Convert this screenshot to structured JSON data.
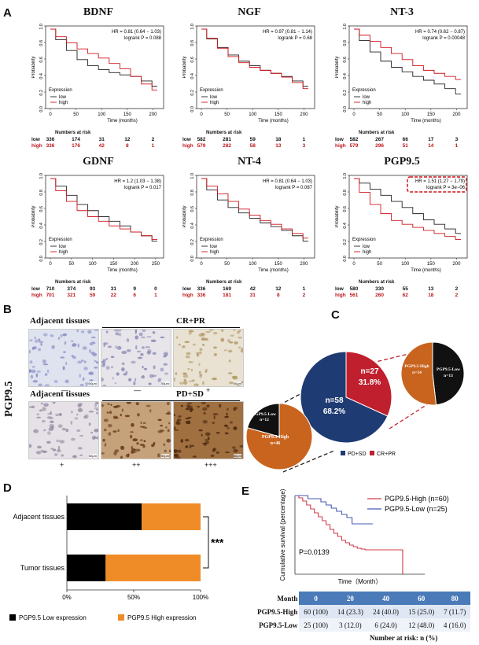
{
  "panels": {
    "a": "A",
    "b": "B",
    "c": "C",
    "d": "D",
    "e": "E"
  },
  "km": [
    {
      "title": "BDNF",
      "hr": "HR = 0.81 (0.64 − 1.03)",
      "logrank": "logrank P = 0.088",
      "xticks": [
        "0",
        "50",
        "100",
        "150",
        "200"
      ],
      "low_risk": [
        "336",
        "174",
        "31",
        "12",
        "2"
      ],
      "high_risk": [
        "336",
        "176",
        "42",
        "8",
        "1"
      ]
    },
    {
      "title": "NGF",
      "hr": "HR = 0.97 (0.81 − 1.14)",
      "logrank": "logrank P = 0.68",
      "xticks": [
        "0",
        "50",
        "100",
        "150",
        "200"
      ],
      "low_risk": [
        "582",
        "281",
        "59",
        "18",
        "1"
      ],
      "high_risk": [
        "579",
        "282",
        "58",
        "13",
        "3"
      ]
    },
    {
      "title": "NT-3",
      "hr": "HR = 0.74 (0.62 − 0.87)",
      "logrank": "logrank P = 0.00048",
      "xticks": [
        "0",
        "50",
        "100",
        "150",
        "200"
      ],
      "low_risk": [
        "582",
        "267",
        "66",
        "17",
        "3"
      ],
      "high_risk": [
        "579",
        "296",
        "51",
        "14",
        "1"
      ]
    },
    {
      "title": "GDNF",
      "hr": "HR = 1.2 (1.03 − 1.38)",
      "logrank": "logrank P = 0.017",
      "xticks": [
        "0",
        "50",
        "100",
        "150",
        "200",
        "250"
      ],
      "low_risk": [
        "710",
        "374",
        "93",
        "31",
        "9",
        "0"
      ],
      "high_risk": [
        "701",
        "321",
        "59",
        "22",
        "6",
        "1"
      ]
    },
    {
      "title": "NT-4",
      "hr": "HR = 0.81 (0.64 − 1.03)",
      "logrank": "logrank P = 0.087",
      "xticks": [
        "0",
        "50",
        "100",
        "150",
        "200"
      ],
      "low_risk": [
        "336",
        "169",
        "42",
        "12",
        "1"
      ],
      "high_risk": [
        "336",
        "181",
        "31",
        "8",
        "2"
      ]
    },
    {
      "title": "PGP9.5",
      "hr": "HR = 1.51 (1.27 − 1.79)",
      "logrank": "logrank P = 3e−06",
      "xticks": [
        "0",
        "50",
        "100",
        "150",
        "200"
      ],
      "low_risk": [
        "580",
        "330",
        "55",
        "13",
        "2"
      ],
      "high_risk": [
        "561",
        "260",
        "62",
        "18",
        "2"
      ]
    }
  ],
  "km_common": {
    "ylabel": "Probability",
    "xlabel": "Time (months)",
    "yticks": [
      "0.0",
      "0.2",
      "0.4",
      "0.6",
      "0.8",
      "1.0"
    ],
    "legend_title": "Expression",
    "legend_low": "low",
    "legend_high": "high",
    "risk_header": "Numbers at risk",
    "risk_low": "low",
    "risk_high": "high",
    "color_low": "#222222",
    "color_high": "#d0141c"
  },
  "panel_b": {
    "side_label": "PGP9.5",
    "top_left": "Adjacent tissues",
    "top_right": "CR+PR",
    "bottom_left": "Adjacent tissues",
    "bottom_right": "PD+SD",
    "scale": "50μm",
    "top_scores": [
      "—",
      "—",
      "+"
    ],
    "bottom_scores": [
      "+",
      "++",
      "+++"
    ]
  },
  "panel_c": {
    "main_left_label": "n=58",
    "main_left_pct": "68.2%",
    "main_right_label": "n=27",
    "main_right_pct": "31.8%",
    "left_high": "PGP9.5-High",
    "left_high_n": "n=46",
    "left_low": "PGP9.5-Low",
    "left_low_n": "n=12",
    "right_high": "PGP9.5-High",
    "right_high_n": "n=14",
    "right_low": "PGP9.5-Low",
    "right_low_n": "n=13",
    "legend_pdsd": "PD+SD",
    "legend_crpr": "CR+PR",
    "color_navy": "#1f3b73",
    "color_red": "#c0202e",
    "color_orange": "#c8641e"
  },
  "chart_data": [
    {
      "type": "bar",
      "orientation": "horizontal-stacked",
      "categories": [
        "Adjacent tissues",
        "Tumor tissues"
      ],
      "series": [
        {
          "name": "PGP9.5 Low expression",
          "values": [
            56,
            29
          ],
          "color": "#000000"
        },
        {
          "name": "PGP9.5 High expression",
          "values": [
            44,
            71
          ],
          "color": "#f08c28"
        }
      ],
      "xlim": [
        0,
        100
      ],
      "xticks": [
        "0%",
        "50%",
        "100%"
      ],
      "significance": "***"
    },
    {
      "type": "line",
      "title": "",
      "xlabel": "Time（Month）",
      "ylabel": "Cumulative survival (percentage)",
      "xlim": [
        0,
        100
      ],
      "ylim": [
        0,
        100
      ],
      "series": [
        {
          "name": "PGP9.5-High  (n=60)",
          "color": "#d23c4c",
          "x": [
            0,
            3,
            6,
            9,
            12,
            15,
            18,
            21,
            24,
            27,
            30,
            33,
            36,
            39,
            42,
            45,
            48,
            51,
            54,
            60,
            66,
            72,
            78,
            83,
            83
          ],
          "y": [
            100,
            97,
            93,
            88,
            83,
            78,
            73,
            68,
            63,
            57,
            52,
            48,
            43,
            40,
            37,
            35,
            33,
            32,
            31,
            31,
            31,
            31,
            31,
            31,
            0
          ]
        },
        {
          "name": "PGP9.5-Low  (n=25)",
          "color": "#4a5ab4",
          "x": [
            0,
            10,
            20,
            24,
            28,
            32,
            36,
            40,
            44,
            48,
            52,
            56,
            60
          ],
          "y": [
            100,
            96,
            92,
            88,
            84,
            80,
            76,
            72,
            64,
            64,
            64,
            64,
            64
          ]
        }
      ],
      "pvalue": "P=0.0139"
    }
  ],
  "panel_e_table": {
    "header": [
      "Month",
      "0",
      "20",
      "40",
      "60",
      "80"
    ],
    "high": [
      "PGP9.5-High",
      "60 (100)",
      "14 (23.3)",
      "24 (40.0)",
      "15 (25.0)",
      "7 (11.7)"
    ],
    "low": [
      "PGP9.5-Low",
      "25 (100)",
      "3 (12.0)",
      "6 (24.0)",
      "12 (48.0)",
      "4 (16.0)"
    ],
    "footer": "Number at risk: n (%)"
  }
}
